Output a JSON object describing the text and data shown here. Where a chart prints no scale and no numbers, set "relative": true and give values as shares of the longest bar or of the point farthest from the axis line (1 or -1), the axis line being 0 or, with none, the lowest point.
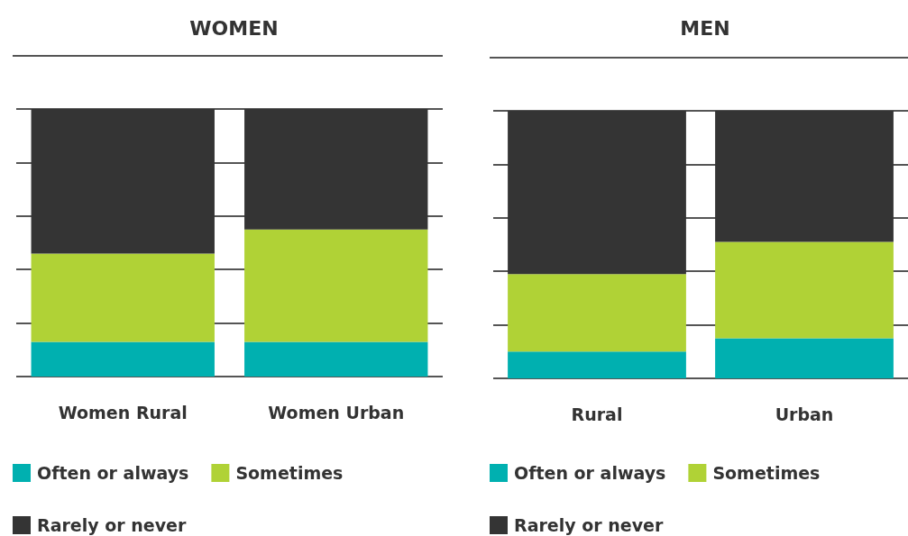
{
  "chart_data": [
    {
      "type": "bar",
      "title": "WOMEN",
      "categories": [
        "Women Rural",
        "Women Urban"
      ],
      "stacked": true,
      "relative": true,
      "grid": "y",
      "legend": "bottom left",
      "series": [
        {
          "name": "Often or always",
          "color": "#00b0b0",
          "values": [
            0.13,
            0.13
          ]
        },
        {
          "name": "Sometimes",
          "color": "#b0d236",
          "values": [
            0.33,
            0.42
          ]
        },
        {
          "name": "Rarely or never",
          "color": "#343434",
          "values": [
            0.54,
            0.45
          ]
        }
      ]
    },
    {
      "type": "bar",
      "title": "MEN",
      "categories": [
        "Rural",
        "Urban"
      ],
      "stacked": true,
      "relative": true,
      "grid": "y",
      "legend": "bottom left",
      "series": [
        {
          "name": "Often or always",
          "color": "#00b0b0",
          "values": [
            0.1,
            0.15
          ]
        },
        {
          "name": "Sometimes",
          "color": "#b0d236",
          "values": [
            0.29,
            0.36
          ]
        },
        {
          "name": "Rarely or never",
          "color": "#343434",
          "values": [
            0.61,
            0.49
          ]
        }
      ]
    }
  ]
}
